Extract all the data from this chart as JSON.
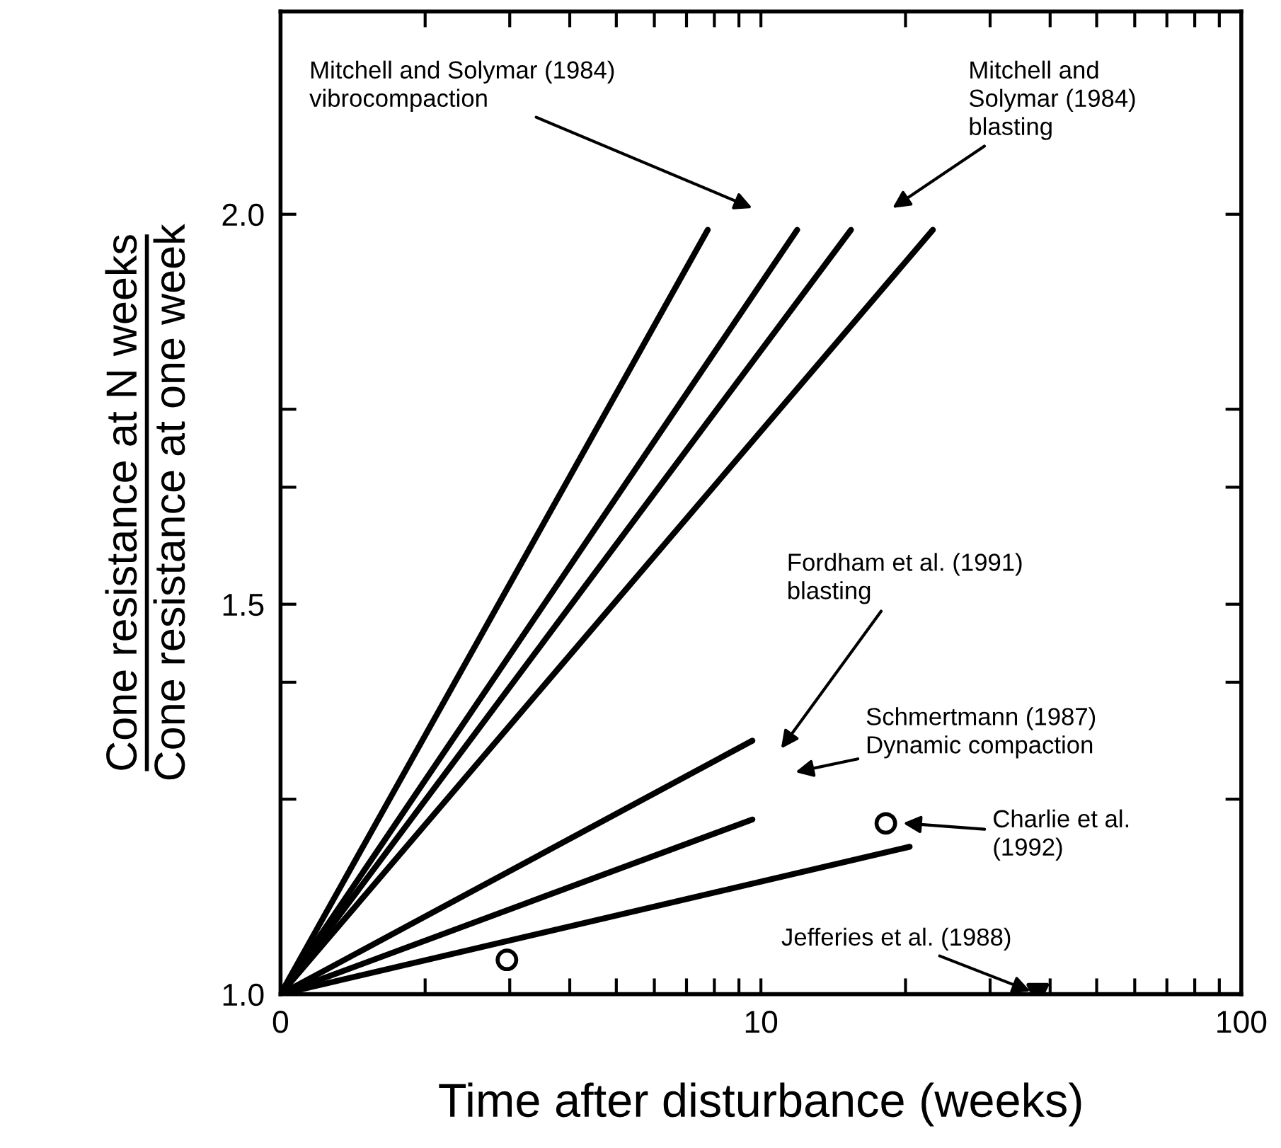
{
  "chart_data": {
    "type": "line",
    "xlabel": "Time after disturbance (weeks)",
    "ylabel": "Cone resistance at N weeks\nCone resistance at one week",
    "log": "x",
    "xlim": [
      0,
      100
    ],
    "ylim": [
      1.0,
      2.26
    ],
    "xticks": [
      0,
      {
        "value": 2,
        "label": null
      },
      {
        "value": 3,
        "label": null
      },
      {
        "value": 4,
        "label": null
      },
      {
        "value": 5,
        "label": null
      },
      {
        "value": 6,
        "label": null
      },
      {
        "value": 7,
        "label": null
      },
      {
        "value": 8,
        "label": null
      },
      {
        "value": 9,
        "label": null
      },
      10,
      {
        "value": 20,
        "label": null
      },
      {
        "value": 30,
        "label": null
      },
      {
        "value": 40,
        "label": null
      },
      {
        "value": 50,
        "label": null
      },
      {
        "value": 60,
        "label": null
      },
      {
        "value": 70,
        "label": null
      },
      {
        "value": 80,
        "label": null
      },
      {
        "value": 90,
        "label": null
      },
      100
    ],
    "yticks": [
      {
        "value": 1.0,
        "label": "1.0"
      },
      {
        "value": 1.25,
        "label": null
      },
      {
        "value": 1.4,
        "label": null
      },
      1.5,
      {
        "value": 1.65,
        "label": null
      },
      {
        "value": 1.75,
        "label": null
      },
      {
        "value": 2.0,
        "label": "2.0"
      }
    ],
    "grid": false,
    "legend": false,
    "marker": "none",
    "line_style": "solid",
    "series": [
      {
        "color": "#000000",
        "x": [
          1,
          7.75
        ],
        "values": [
          1.0,
          1.98
        ]
      },
      {
        "color": "#000000",
        "x": [
          1,
          11.9
        ],
        "values": [
          1.0,
          1.98
        ]
      },
      {
        "color": "#000000",
        "x": [
          1,
          15.4
        ],
        "values": [
          1.0,
          1.98
        ]
      },
      {
        "color": "#000000",
        "x": [
          1,
          22.8
        ],
        "values": [
          1.0,
          1.98
        ]
      },
      {
        "color": "#000000",
        "x": [
          1,
          9.6
        ],
        "values": [
          1.0,
          1.325
        ]
      },
      {
        "color": "#000000",
        "x": [
          1,
          9.6
        ],
        "values": [
          1.0,
          1.224
        ]
      },
      {
        "color": "#000000",
        "x": [
          1,
          20.4
        ],
        "values": [
          1.0,
          1.189
        ]
      },
      {
        "type": "scatter",
        "marker": "circle",
        "color": "#000000",
        "x": [
          2.96,
          18.2
        ],
        "values": [
          1.044,
          1.219
        ]
      },
      {
        "type": "scatter",
        "marker": "triangle",
        "color": "#000000",
        "x": [
          37.7
        ],
        "values": [
          1.0
        ]
      }
    ],
    "annotations": [
      "Mitchell and Solymar (1984)\nvibrocompaction",
      "Mitchell and\nSolymar (1984)\nblasting",
      "Fordham et al. (1991)\nblasting",
      "Schmertmann (1987)\nDynamic compaction",
      "Charlie et al.\n(1992)",
      {
        "text": "Jefferies et al. (1988)",
        "x": 37.7,
        "y": 1.0
      }
    ]
  }
}
